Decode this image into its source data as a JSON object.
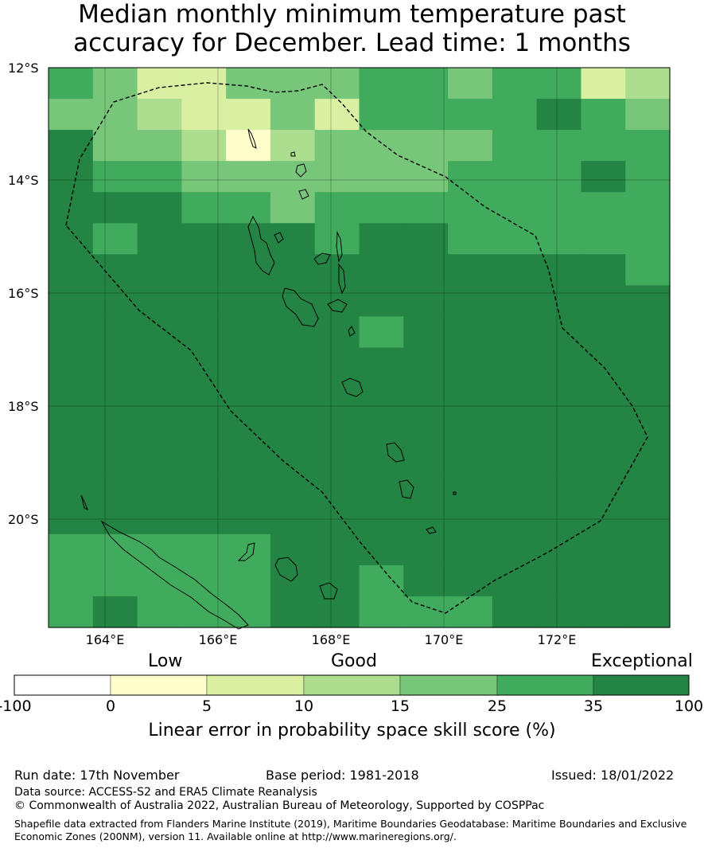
{
  "title_line1": "Median monthly minimum temperature past",
  "title_line2": "accuracy for December. Lead time: 1 months",
  "lat_labels": [
    "12°S",
    "14°S",
    "16°S",
    "18°S",
    "20°S"
  ],
  "lon_labels": [
    "164°E",
    "166°E",
    "168°E",
    "170°E",
    "172°E"
  ],
  "categories": {
    "low": "Low",
    "good": "Good",
    "exceptional": "Exceptional"
  },
  "colorbar": {
    "ticks": [
      "-100",
      "0",
      "5",
      "10",
      "15",
      "25",
      "35",
      "100"
    ],
    "colors": [
      "#ffffff",
      "#ffffcc",
      "#d9f0a3",
      "#addd8e",
      "#78c679",
      "#41ab5d",
      "#238443"
    ],
    "caption": "Linear error in probability space skill score (%)"
  },
  "footer": {
    "run_date": "Run date: 17th November",
    "base_period": "Base period: 1981-2018",
    "issued": "Issued: 18/01/2022",
    "data_source": "Data source: ACCESS-S2 and ERA5 Climate Reanalysis",
    "copyright": "© Commonwealth of Australia 2022, Australian Bureau of Meteorology, Supported by COSPPac",
    "shapefile_line1": "Shapefile data extracted from Flanders Marine Institute (2019), Maritime Boundaries Geodatabase: Maritime Boundaries and Exclusive",
    "shapefile_line2": "Economic Zones (200NM), version 11. Available online at http://www.marineregions.org/."
  }
}
